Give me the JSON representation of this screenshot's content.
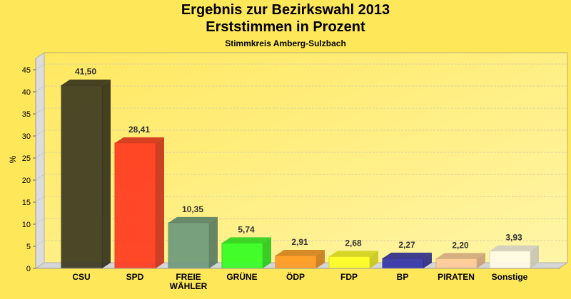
{
  "chart_data": {
    "type": "bar",
    "title": "Ergebnis zur Bezirkswahl 2013",
    "subtitle": "Erststimmen in Prozent",
    "subtitle2": "Stimmkreis Amberg-Sulzbach",
    "ylabel": "%",
    "xlabel": "",
    "ylim": [
      0,
      45
    ],
    "yticks": [
      0,
      5,
      10,
      15,
      20,
      25,
      30,
      35,
      40,
      45
    ],
    "grid": true,
    "categories": [
      "CSU",
      "SPD",
      "FREIE\nWÄHLER",
      "GRÜNE",
      "ÖDP",
      "FDP",
      "BP",
      "PIRATEN",
      "Sonstige"
    ],
    "values": [
      41.5,
      28.41,
      10.35,
      5.74,
      2.91,
      2.68,
      2.27,
      2.2,
      3.93
    ],
    "labels": [
      "41,50",
      "28,41",
      "10,35",
      "5,74",
      "2,91",
      "2,68",
      "2,27",
      "2,20",
      "3,93"
    ],
    "colors": [
      "#3d3a20",
      "#ff3a20",
      "#6e9a7c",
      "#33ff22",
      "#ff9a22",
      "#ffff22",
      "#3333aa",
      "#ffcc99",
      "#fffbe8"
    ]
  }
}
